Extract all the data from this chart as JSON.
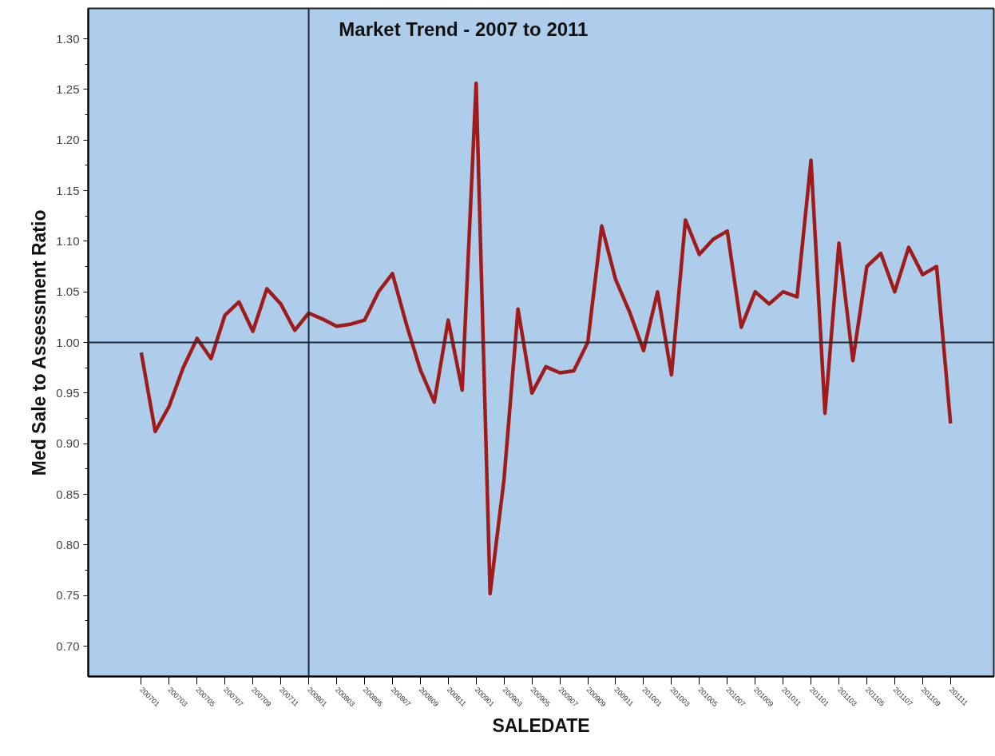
{
  "chart_data": {
    "type": "line",
    "title": "Market Trend - 2007 to 2011",
    "xlabel": "SALEDATE",
    "ylabel": "Med Sale to Assessment Ratio",
    "categories": [
      "200701",
      null,
      "200703",
      null,
      "200705",
      null,
      "200707",
      null,
      "200709",
      null,
      "200711",
      null,
      "200801",
      null,
      "200803",
      null,
      "200805",
      null,
      "200807",
      null,
      "200809",
      null,
      "200811",
      null,
      "200901",
      null,
      "200903",
      null,
      "200905",
      null,
      "200907",
      null,
      "200909",
      null,
      "200911",
      null,
      "201001",
      null,
      "201003",
      null,
      "201005",
      null,
      "201007",
      null,
      "201009",
      null,
      "201011",
      null,
      "201101",
      null,
      "201103",
      null,
      "201105",
      null,
      "201107",
      null,
      "201109",
      null,
      "201111"
    ],
    "series": [
      {
        "color": "#a01c1c",
        "values": [
          0.99,
          0.912,
          0.937,
          0.975,
          1.004,
          0.984,
          1.027,
          1.04,
          1.011,
          1.053,
          1.038,
          1.012,
          1.029,
          1.023,
          1.016,
          1.018,
          1.022,
          1.05,
          1.068,
          1.018,
          0.973,
          0.941,
          1.022,
          0.953,
          1.256,
          0.752,
          0.865,
          1.033,
          0.95,
          0.976,
          0.97,
          0.972,
          1.0,
          1.115,
          1.062,
          1.03,
          0.992,
          1.05,
          0.968,
          1.121,
          1.087,
          1.102,
          1.11,
          1.015,
          1.05,
          1.038,
          1.05,
          1.045,
          1.18,
          0.93,
          1.098,
          0.982,
          1.075,
          1.088,
          1.05,
          1.094,
          1.067,
          1.075,
          0.92
        ]
      }
    ],
    "ylim": [
      0.67,
      1.33
    ],
    "yticks": [
      {
        "value": 0.7,
        "label": "0.70"
      },
      0.75,
      {
        "value": 0.8,
        "label": "0.80"
      },
      0.85,
      {
        "value": 0.9,
        "label": "0.90"
      },
      0.95,
      {
        "value": 1.0,
        "label": "1.00"
      },
      1.05,
      {
        "value": 1.1,
        "label": "1.10"
      },
      1.15,
      {
        "value": 1.2,
        "label": "1.20"
      },
      1.25,
      {
        "value": 1.3,
        "label": "1.30"
      }
    ],
    "ref_lines": [
      {
        "axis": "y",
        "value": 1.0,
        "color": "#1f2a36"
      },
      {
        "axis": "x",
        "value": "200801",
        "color": "#1f2a36"
      }
    ],
    "grid": false,
    "marker": "none",
    "line_style": "solid"
  }
}
